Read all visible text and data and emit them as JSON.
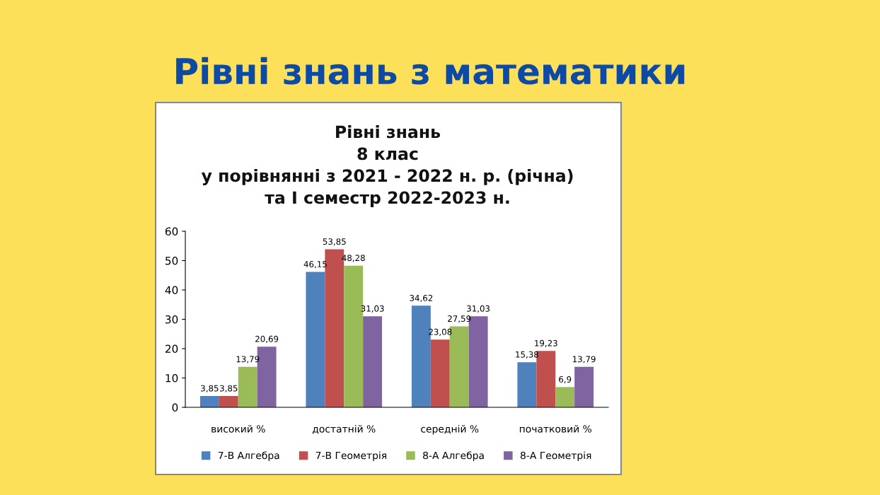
{
  "chart_data": {
    "type": "bar",
    "title": "Рівні знань з математики",
    "subtitle": "Рівні знань\n8 клас\nу порівнянні з 2021 - 2022 н. р. (річна)\nта І семестр 2022-2023 н.",
    "categories": [
      "високий %",
      "достатній %",
      "середній %",
      "початковий %"
    ],
    "series": [
      {
        "name": "7-В Алгебра",
        "color": "#4f81bd",
        "values": [
          3.85,
          46.15,
          34.62,
          15.38
        ],
        "value_labels": [
          "3,85",
          "46,15",
          "34,62",
          "15,38"
        ]
      },
      {
        "name": "7-В Геометрія",
        "color": "#c0504d",
        "values": [
          3.85,
          53.85,
          23.08,
          19.23
        ],
        "value_labels": [
          "3,85",
          "53,85",
          "23,08",
          "19,23"
        ]
      },
      {
        "name": "8-А Алгебра",
        "color": "#9bbb59",
        "values": [
          13.79,
          48.28,
          27.59,
          6.9
        ],
        "value_labels": [
          "13,79",
          "48,28",
          "27,59",
          "6,9"
        ]
      },
      {
        "name": "8-А Геометрія",
        "color": "#8064a2",
        "values": [
          20.69,
          31.03,
          31.03,
          13.79
        ],
        "value_labels": [
          "20,69",
          "31,03",
          "31,03",
          "13,79"
        ]
      }
    ],
    "ylim": [
      0,
      60
    ],
    "yticks": [
      0,
      10,
      20,
      30,
      40,
      50,
      60
    ],
    "grid": false,
    "legend": "bottom"
  }
}
